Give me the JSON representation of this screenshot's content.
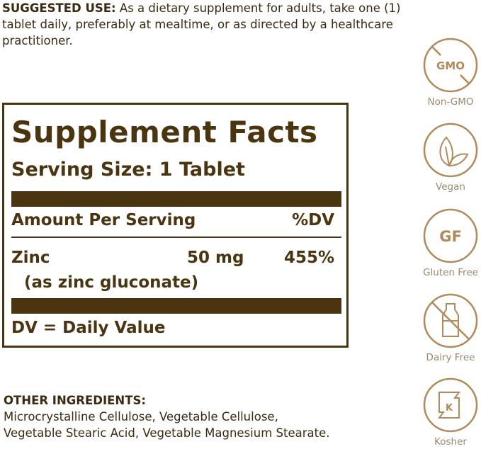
{
  "suggested_use": {
    "heading": "SUGGESTED USE:",
    "text": " As a dietary supplement for adults, take one (1) tablet daily, preferably at mealtime, or as directed by a healthcare practitioner."
  },
  "facts": {
    "title": "Supplement Facts",
    "serving_size": "Serving Size: 1 Tablet",
    "amount_header": "Amount Per Serving",
    "dv_header": "%DV",
    "nutrient": {
      "name": "Zinc",
      "amount": "50 mg",
      "dv": "455%",
      "form": "(as zinc gluconate)"
    },
    "footnote": "DV = Daily Value"
  },
  "other_ingredients": {
    "heading": "OTHER INGREDIENTS:",
    "text": "Microcrystalline Cellulose, Vegetable Cellulose, Vegetable Stearic Acid, Vegetable Magnesium Stearate."
  },
  "badges": [
    {
      "icon": "non-gmo-icon",
      "label": "Non-GMO",
      "glyph": "GMO"
    },
    {
      "icon": "vegan-leaf-icon",
      "label": "Vegan"
    },
    {
      "icon": "gluten-free-icon",
      "label": "Gluten Free",
      "glyph": "GF"
    },
    {
      "icon": "dairy-free-bottle-icon",
      "label": "Dairy Free"
    },
    {
      "icon": "kosher-icon",
      "label": "Kosher",
      "glyph": "K"
    }
  ],
  "colors": {
    "label_brown": "#4a3510",
    "badge_gold": "#b08a5a",
    "text": "#3a2a12"
  }
}
